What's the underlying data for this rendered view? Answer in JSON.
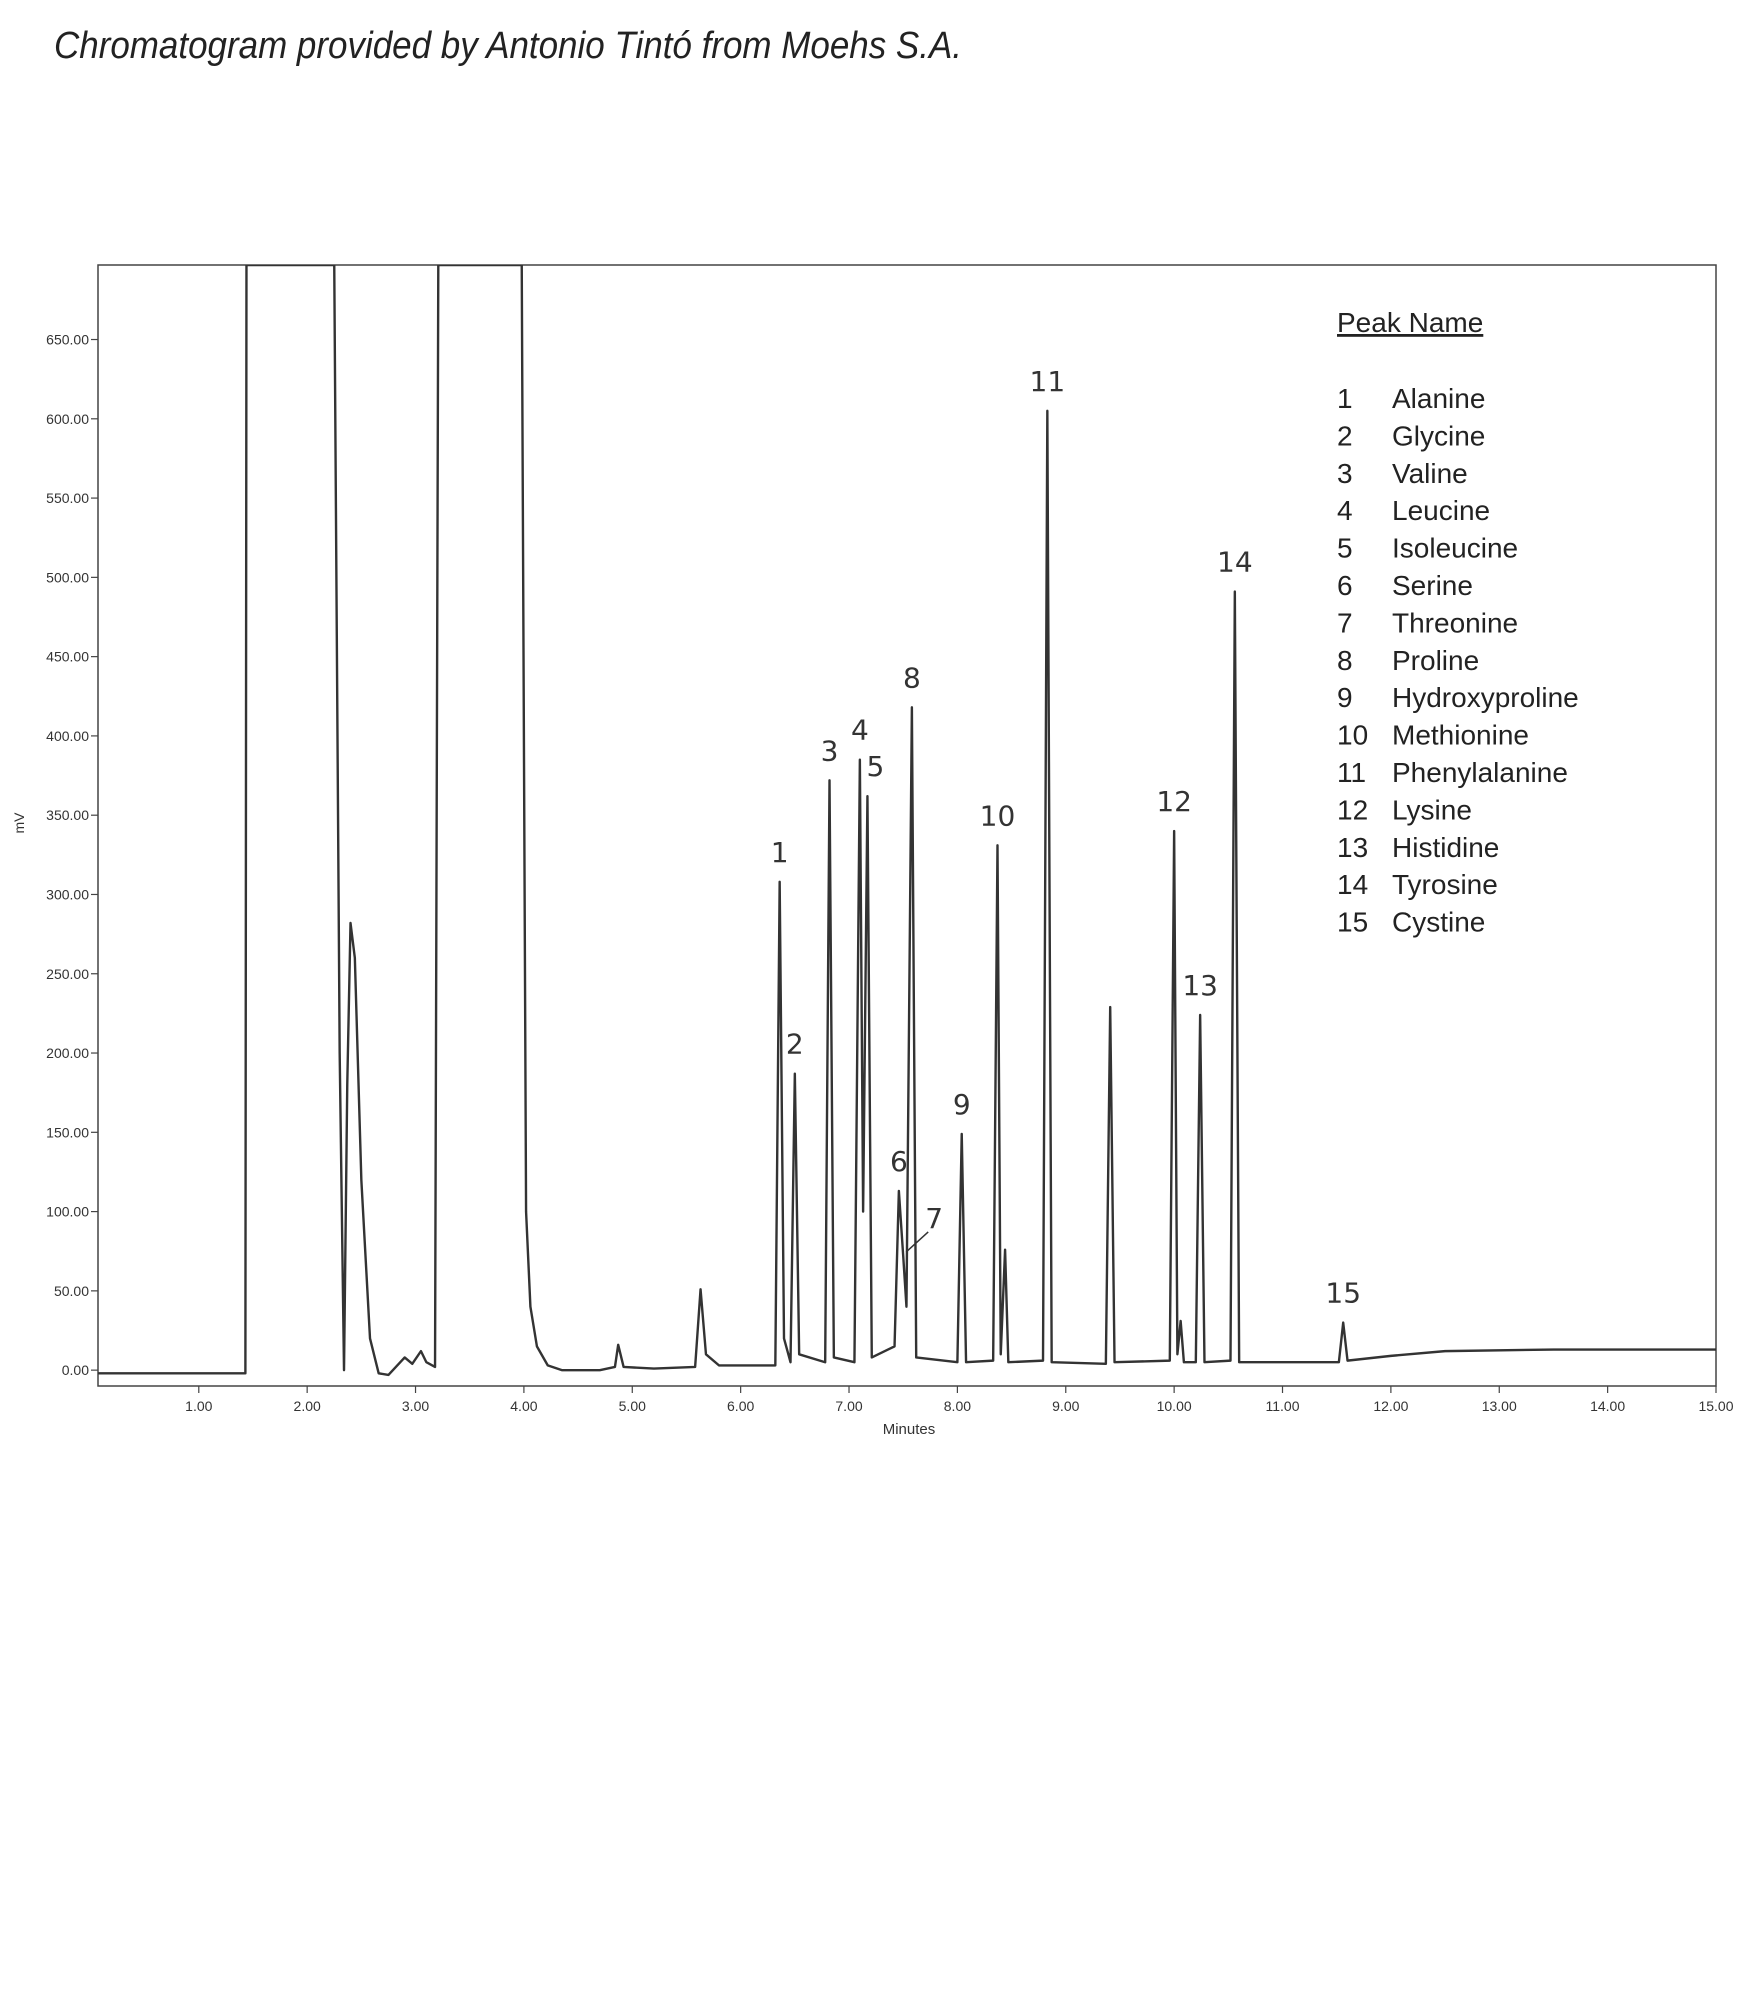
{
  "chart_data": {
    "type": "line",
    "title": "Chromatogram provided by Antonio Tintó from Moehs S.A.",
    "y_label": "mV",
    "x_label": "Minutes",
    "color": "#333333",
    "xlim": [
      0.07,
      15
    ],
    "ylim": [
      -10,
      697
    ],
    "xticks": [
      {
        "value": 1,
        "label": "1.00"
      },
      {
        "value": 2,
        "label": "2.00"
      },
      {
        "value": 3,
        "label": "3.00"
      },
      {
        "value": 4,
        "label": "4.00"
      },
      {
        "value": 5,
        "label": "5.00"
      },
      {
        "value": 6,
        "label": "6.00"
      },
      {
        "value": 7,
        "label": "7.00"
      },
      {
        "value": 8,
        "label": "8.00"
      },
      {
        "value": 9,
        "label": "9.00"
      },
      {
        "value": 10,
        "label": "10.00"
      },
      {
        "value": 11,
        "label": "11.00"
      },
      {
        "value": 12,
        "label": "12.00"
      },
      {
        "value": 13,
        "label": "13.00"
      },
      {
        "value": 14,
        "label": "14.00"
      },
      {
        "value": 15,
        "label": "15.00"
      }
    ],
    "yticks": [
      {
        "value": 0,
        "label": "0.00"
      },
      {
        "value": 50,
        "label": "50.00"
      },
      {
        "value": 100,
        "label": "100.00"
      },
      {
        "value": 150,
        "label": "150.00"
      },
      {
        "value": 200,
        "label": "200.00"
      },
      {
        "value": 250,
        "label": "250.00"
      },
      {
        "value": 300,
        "label": "300.00"
      },
      {
        "value": 350,
        "label": "350.00"
      },
      {
        "value": 400,
        "label": "400.00"
      },
      {
        "value": 450,
        "label": "450.00"
      },
      {
        "value": 500,
        "label": "500.00"
      },
      {
        "value": 550,
        "label": "550.00"
      },
      {
        "value": 600,
        "label": "600.00"
      },
      {
        "value": 650,
        "label": "650.00"
      }
    ],
    "x": [
      0.07,
      1.43,
      1.44,
      1.46,
      2.25,
      2.3,
      2.34,
      2.37,
      2.4,
      2.44,
      2.5,
      2.58,
      2.66,
      2.75,
      2.9,
      2.97,
      3.05,
      3.1,
      3.18,
      3.21,
      3.98,
      4.02,
      4.06,
      4.12,
      4.22,
      4.35,
      4.7,
      4.84,
      4.87,
      4.92,
      5.2,
      5.58,
      5.63,
      5.68,
      5.8,
      6.32,
      6.36,
      6.4,
      6.46,
      6.5,
      6.54,
      6.78,
      6.82,
      6.86,
      7.05,
      7.1,
      7.13,
      7.17,
      7.21,
      7.42,
      7.46,
      7.5,
      7.53,
      7.58,
      7.62,
      8.0,
      8.04,
      8.08,
      8.33,
      8.37,
      8.4,
      8.44,
      8.47,
      8.79,
      8.83,
      8.87,
      9.37,
      9.41,
      9.45,
      9.96,
      10.0,
      10.03,
      10.06,
      10.09,
      10.2,
      10.24,
      10.28,
      10.52,
      10.56,
      10.6,
      11.52,
      11.56,
      11.6,
      12.0,
      12.5,
      13.5,
      15.0
    ],
    "values": [
      -2,
      -2,
      697,
      697,
      697,
      200,
      0,
      180,
      282,
      260,
      120,
      20,
      -2,
      -3,
      8,
      4,
      12,
      5,
      2,
      697,
      697,
      100,
      40,
      15,
      3,
      0,
      0,
      2,
      16,
      2,
      1,
      2,
      51,
      10,
      3,
      3,
      308,
      20,
      5,
      187,
      10,
      5,
      372,
      8,
      5,
      385,
      100,
      362,
      8,
      15,
      113,
      72,
      40,
      418,
      8,
      5,
      149,
      5,
      6,
      331,
      10,
      76,
      5,
      6,
      605,
      5,
      4,
      229,
      5,
      6,
      340,
      10,
      31,
      5,
      5,
      224,
      5,
      6,
      491,
      5,
      5,
      30,
      6,
      9,
      12,
      13,
      13
    ],
    "legend_title": "Peak Name",
    "peaks": [
      {
        "label": "1",
        "name": "Alanine",
        "time": 6.36,
        "height": 308
      },
      {
        "label": "2",
        "name": "Glycine",
        "time": 6.5,
        "height": 187
      },
      {
        "label": "3",
        "name": "Valine",
        "time": 6.82,
        "height": 372
      },
      {
        "label": "4",
        "name": "Leucine",
        "time": 7.1,
        "height": 385
      },
      {
        "label": "5",
        "name": "Isoleucine",
        "time": 7.17,
        "height": 362
      },
      {
        "label": "6",
        "name": "Serine",
        "time": 7.46,
        "height": 113
      },
      {
        "label": "7",
        "name": "Threonine",
        "time": 7.5,
        "height": 72
      },
      {
        "label": "8",
        "name": "Proline",
        "time": 7.58,
        "height": 418
      },
      {
        "label": "9",
        "name": "Hydroxyproline",
        "time": 8.04,
        "height": 149
      },
      {
        "label": "10",
        "name": "Methionine",
        "time": 8.37,
        "height": 331
      },
      {
        "label": "11",
        "name": "Phenylalanine",
        "time": 8.83,
        "height": 605
      },
      {
        "label": "12",
        "name": "Lysine",
        "time": 10.0,
        "height": 340
      },
      {
        "label": "13",
        "name": "Histidine",
        "time": 10.24,
        "height": 224
      },
      {
        "label": "14",
        "name": "Tyrosine",
        "time": 10.56,
        "height": 491
      },
      {
        "label": "15",
        "name": "Cystine",
        "time": 11.56,
        "height": 30
      }
    ]
  }
}
